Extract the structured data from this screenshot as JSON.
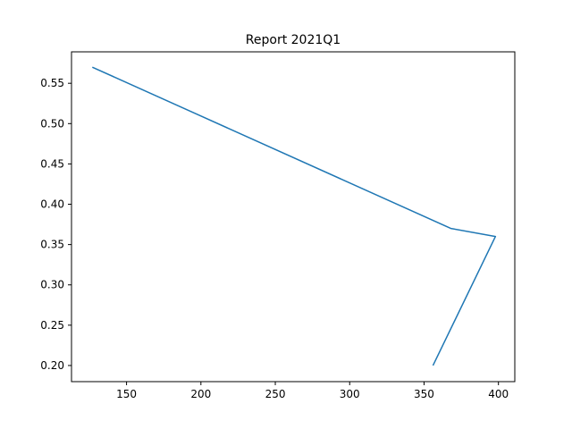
{
  "chart_data": {
    "type": "line",
    "title": "Report 2021Q1",
    "xlabel": "",
    "ylabel": "",
    "xlim": [
      113,
      411
    ],
    "ylim": [
      0.18,
      0.589
    ],
    "xticks": [
      150,
      200,
      250,
      300,
      350,
      400
    ],
    "xtick_labels": [
      "150",
      "200",
      "250",
      "300",
      "350",
      "400"
    ],
    "yticks": [
      0.2,
      0.25,
      0.3,
      0.35,
      0.4,
      0.45,
      0.5,
      0.55
    ],
    "ytick_labels": [
      "0.20",
      "0.25",
      "0.30",
      "0.35",
      "0.40",
      "0.45",
      "0.50",
      "0.55"
    ],
    "grid": false,
    "series": [
      {
        "color": "#1f77b4",
        "x": [
          127,
          368,
          398,
          356
        ],
        "y": [
          0.57,
          0.37,
          0.36,
          0.2
        ]
      }
    ]
  }
}
